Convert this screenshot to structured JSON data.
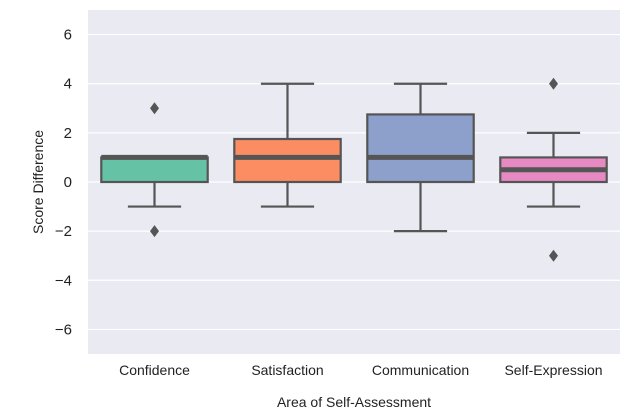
{
  "chart_data": {
    "type": "box",
    "xlabel": "Area of Self-Assessment",
    "ylabel": "Score Difference",
    "ylim": [
      -7,
      7
    ],
    "yticks": [
      6,
      4,
      2,
      0,
      -2,
      -4,
      -6
    ],
    "ytick_labels": [
      "6",
      "4",
      "2",
      "0",
      "−2",
      "−4",
      "−6"
    ],
    "grid": true,
    "categories": [
      "Confidence",
      "Satisfaction",
      "Communication",
      "Self-Expression"
    ],
    "boxes": [
      {
        "category": "Confidence",
        "whisker_low": -1,
        "q1": 0,
        "median": 1,
        "q3": 1,
        "whisker_high": 1,
        "outliers": [
          3,
          -2
        ],
        "color": "#66c2a5"
      },
      {
        "category": "Satisfaction",
        "whisker_low": -1,
        "q1": 0,
        "median": 1,
        "q3": 1.75,
        "whisker_high": 4,
        "outliers": [],
        "color": "#fc8d62"
      },
      {
        "category": "Communication",
        "whisker_low": -2,
        "q1": 0,
        "median": 1,
        "q3": 2.75,
        "whisker_high": 4,
        "outliers": [],
        "color": "#8da0cb"
      },
      {
        "category": "Self-Expression",
        "whisker_low": -1,
        "q1": 0,
        "median": 0.5,
        "q3": 1,
        "whisker_high": 2,
        "outliers": [
          4,
          -3
        ],
        "color": "#e78ac3"
      }
    ],
    "colors": {
      "background": "#eaeaf2",
      "grid": "#ffffff",
      "line": "#555555"
    }
  }
}
